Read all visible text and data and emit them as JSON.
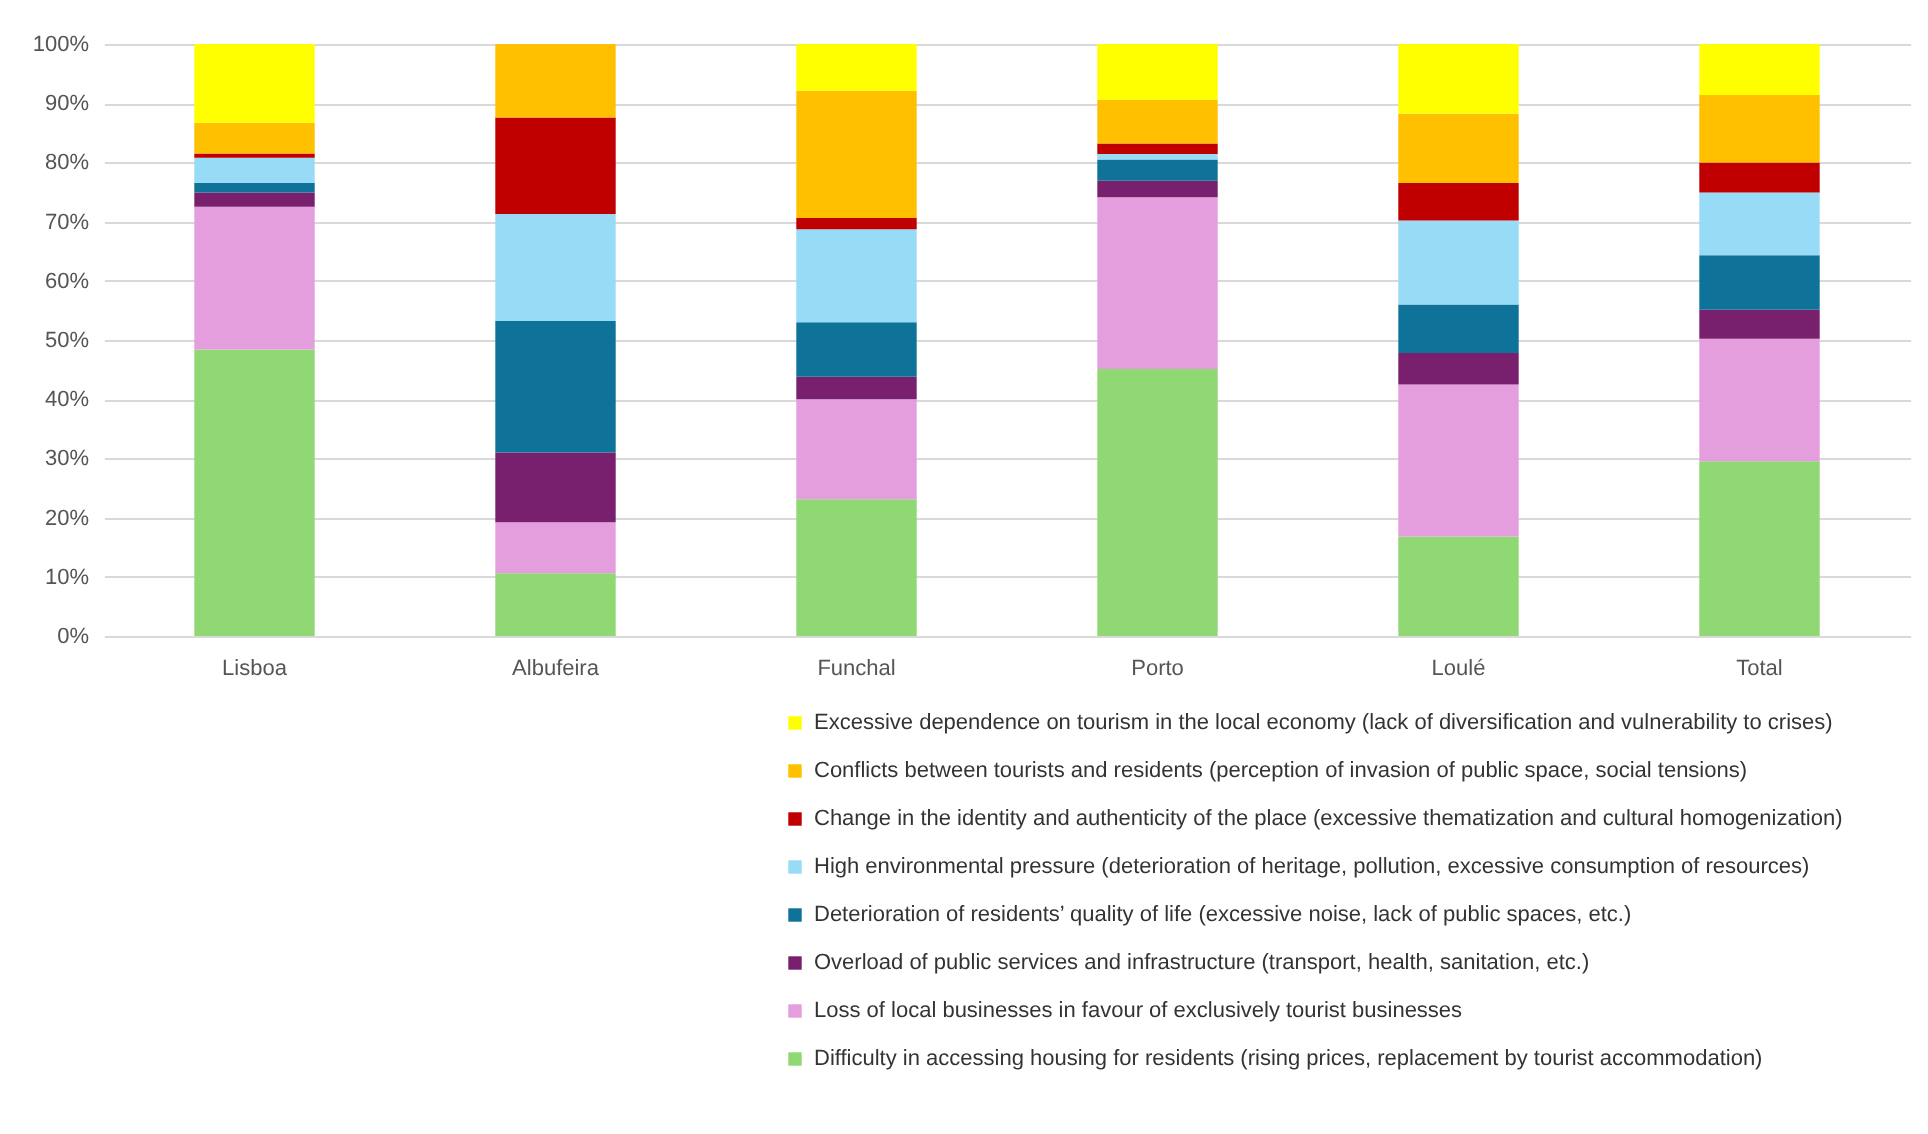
{
  "chart_data": {
    "type": "bar",
    "stacked": true,
    "categories": [
      "Lisboa",
      "Albufeira",
      "Funchal",
      "Porto",
      "Loulé",
      "Total"
    ],
    "series": [
      {
        "name": "Difficulty in accessing housing for residents (rising prices, replacement by tourist accommodation)",
        "color": "#8fd873",
        "values": [
          48.4,
          10.6,
          23.1,
          45.1,
          16.8,
          29.5
        ]
      },
      {
        "name": "Loss of local businesses in favour of exclusively tourist businesses",
        "color": "#e59edd",
        "values": [
          24.1,
          8.6,
          16.9,
          29.0,
          25.7,
          20.7
        ]
      },
      {
        "name": "Overload of public services and infrastructure (transport, health, sanitation, etc.)",
        "color": "#78206e",
        "values": [
          2.4,
          11.8,
          3.8,
          2.8,
          5.3,
          4.9
        ]
      },
      {
        "name": "Deterioration of residents’ quality of life (excessive noise, lack of public spaces, etc.)",
        "color": "#0e7299",
        "values": [
          1.6,
          22.2,
          9.2,
          3.6,
          8.2,
          9.2
        ]
      },
      {
        "name": "High environmental pressure (deterioration of heritage, pollution, excessive consumption of resources)",
        "color": "#97dbf6",
        "values": [
          4.3,
          18.1,
          15.7,
          0.9,
          14.2,
          10.6
        ]
      },
      {
        "name": "Change in the identity and authenticity of the place (excessive thematization and cultural homogenization)",
        "color": "#c00000",
        "values": [
          0.7,
          16.3,
          1.9,
          1.8,
          6.3,
          5.1
        ]
      },
      {
        "name": "Conflicts between tourists and residents (perception of invasion of public space, social tensions)",
        "color": "#ffc000",
        "values": [
          5.2,
          12.4,
          21.5,
          7.4,
          11.7,
          11.4
        ]
      },
      {
        "name": "Excessive dependence on tourism in the local economy (lack of diversification and vulnerability to crises)",
        "color": "#ffff00",
        "values": [
          13.3,
          0,
          7.9,
          9.4,
          11.8,
          8.6
        ]
      }
    ],
    "ylim": [
      0,
      100
    ],
    "yticks": [
      {
        "value": 0,
        "label": "0%"
      },
      {
        "value": 10,
        "label": "10%"
      },
      {
        "value": 20,
        "label": "20%"
      },
      {
        "value": 30,
        "label": "30%"
      },
      {
        "value": 40,
        "label": "40%"
      },
      {
        "value": 50,
        "label": "50%"
      },
      {
        "value": 60,
        "label": "60%"
      },
      {
        "value": 70,
        "label": "70%"
      },
      {
        "value": 80,
        "label": "80%"
      },
      {
        "value": 90,
        "label": "90%"
      },
      {
        "value": 100,
        "label": "100%"
      }
    ],
    "grid": "y",
    "legend": "bottom"
  }
}
